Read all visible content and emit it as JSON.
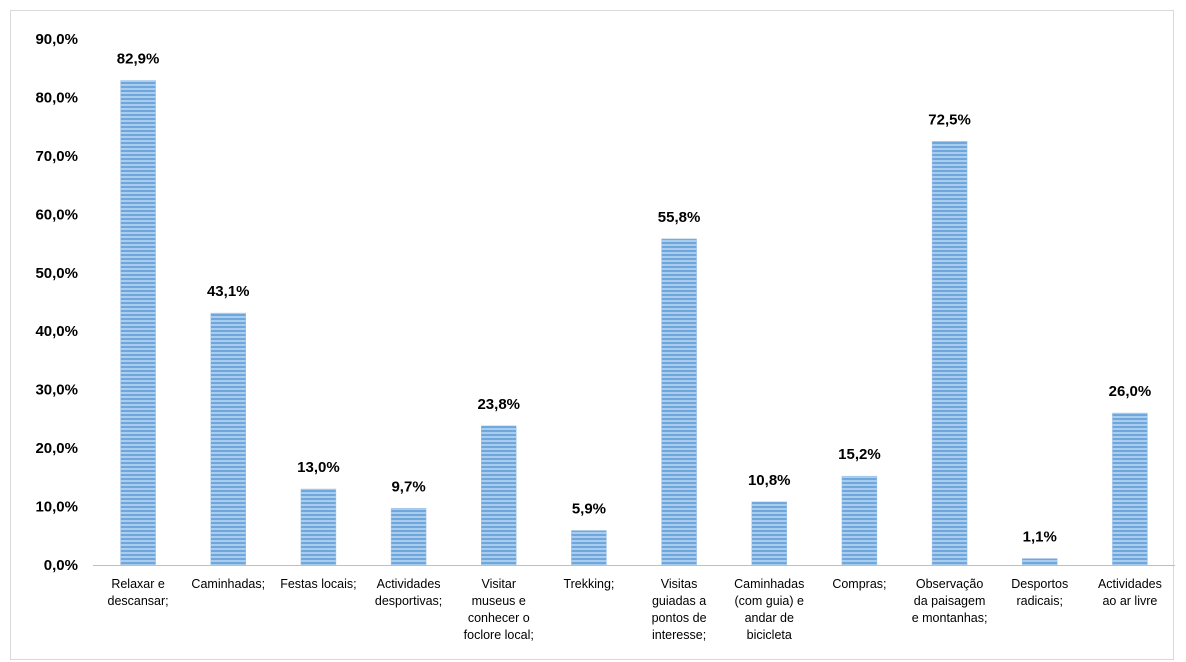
{
  "chart_data": {
    "type": "bar",
    "title": "",
    "xlabel": "",
    "ylabel": "",
    "ylim": [
      0,
      90
    ],
    "y_ticks": [
      "0,0%",
      "10,0%",
      "20,0%",
      "30,0%",
      "40,0%",
      "50,0%",
      "60,0%",
      "70,0%",
      "80,0%",
      "90,0%"
    ],
    "grid": false,
    "bar_color": "#9dc3e6",
    "bar_stripe_color": "#5b9bd5",
    "categories": [
      [
        "Relaxar e",
        "descansar;"
      ],
      [
        "Caminhadas;"
      ],
      [
        "Festas locais;"
      ],
      [
        "Actividades",
        "desportivas;"
      ],
      [
        "Visitar",
        "museus e",
        "conhecer o",
        "foclore local;"
      ],
      [
        "Trekking;"
      ],
      [
        "Visitas",
        "guiadas a",
        "pontos de",
        "interesse;"
      ],
      [
        "Caminhadas",
        "(com guia) e",
        "andar de",
        "bicicleta"
      ],
      [
        "Compras;"
      ],
      [
        "Observação",
        "da paisagem",
        "e montanhas;"
      ],
      [
        "Desportos",
        "radicais;"
      ],
      [
        "Actividades",
        "ao ar livre"
      ]
    ],
    "values": [
      82.9,
      43.1,
      13.0,
      9.7,
      23.8,
      5.9,
      55.8,
      10.8,
      15.2,
      72.5,
      1.1,
      26.0
    ],
    "value_labels": [
      "82,9%",
      "43,1%",
      "13,0%",
      "9,7%",
      "23,8%",
      "5,9%",
      "55,8%",
      "10,8%",
      "15,2%",
      "72,5%",
      "1,1%",
      "26,0%"
    ]
  }
}
